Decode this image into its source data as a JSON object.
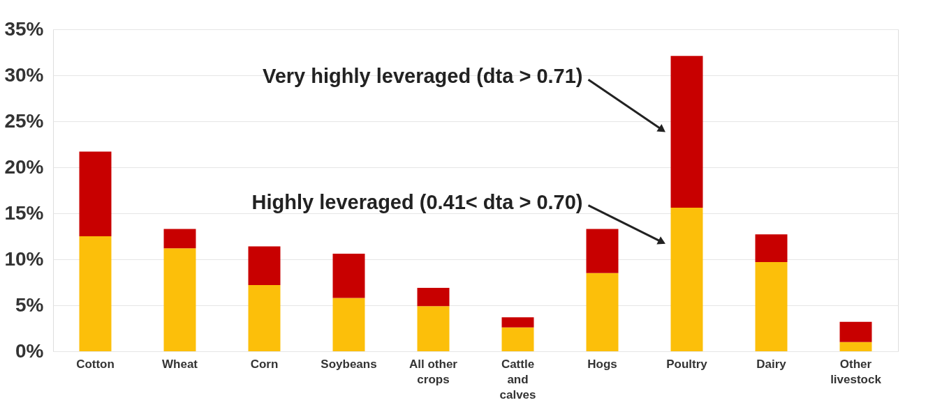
{
  "chart_data": {
    "type": "bar",
    "stacked": true,
    "categories": [
      "Cotton",
      "Wheat",
      "Corn",
      "Soybeans",
      "All other crops",
      "Cattle and calves",
      "Hogs",
      "Poultry",
      "Dairy",
      "Other livestock"
    ],
    "series": [
      {
        "color": "#fcbf0a",
        "values": [
          12.5,
          11.2,
          7.2,
          5.8,
          4.9,
          2.6,
          8.5,
          15.6,
          9.7,
          1.0
        ]
      },
      {
        "color": "#c80000",
        "values": [
          9.2,
          2.1,
          4.2,
          4.8,
          2.0,
          1.1,
          4.8,
          16.5,
          3.0,
          2.2
        ]
      }
    ],
    "ylim": [
      0,
      35
    ],
    "yticks": [
      {
        "value": 0,
        "label": "0%"
      },
      {
        "value": 5,
        "label": "5%"
      },
      {
        "value": 10,
        "label": "10%"
      },
      {
        "value": 15,
        "label": "15%"
      },
      {
        "value": 20,
        "label": "20%"
      },
      {
        "value": 25,
        "label": "25%"
      },
      {
        "value": 30,
        "label": "30%"
      },
      {
        "value": 35,
        "label": "35%"
      }
    ],
    "grid": "y",
    "annotations": [
      "Very highly leveraged (dta > 0.71)",
      "Highly leveraged (0.41< dta > 0.70)"
    ]
  }
}
